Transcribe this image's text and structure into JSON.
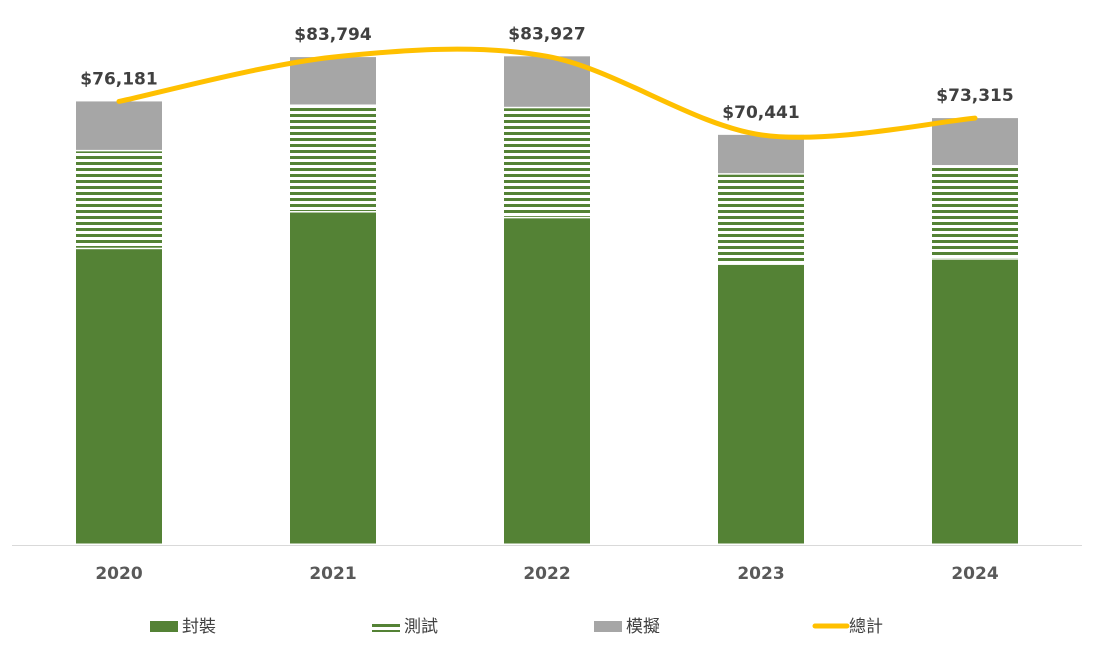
{
  "chart_data": {
    "type": "bar",
    "stacked": true,
    "categories": [
      "2020",
      "2021",
      "2022",
      "2023",
      "2024"
    ],
    "ylim": [
      0,
      93600
    ],
    "series": [
      {
        "name": "封裝",
        "kind": "bar",
        "pattern": "solid",
        "color": "#548235",
        "values": [
          50800,
          57100,
          56100,
          48100,
          49000
        ]
      },
      {
        "name": "測試",
        "kind": "bar",
        "pattern": "horizontal-stripes",
        "color": "#548235",
        "values": [
          16800,
          18300,
          18900,
          15500,
          16000
        ]
      },
      {
        "name": "模擬",
        "kind": "bar",
        "pattern": "solid",
        "color": "#a6a6a6",
        "values": [
          8581,
          8394,
          8927,
          6841,
          8315
        ]
      },
      {
        "name": "總計",
        "kind": "line",
        "smooth": true,
        "color": "#ffc000",
        "values": [
          76181,
          83794,
          83927,
          70441,
          73315
        ]
      }
    ],
    "data_labels": [
      "$76,181",
      "$83,794",
      "$83,927",
      "$70,441",
      "$73,315"
    ],
    "grid": false,
    "legend_position": "bottom"
  }
}
